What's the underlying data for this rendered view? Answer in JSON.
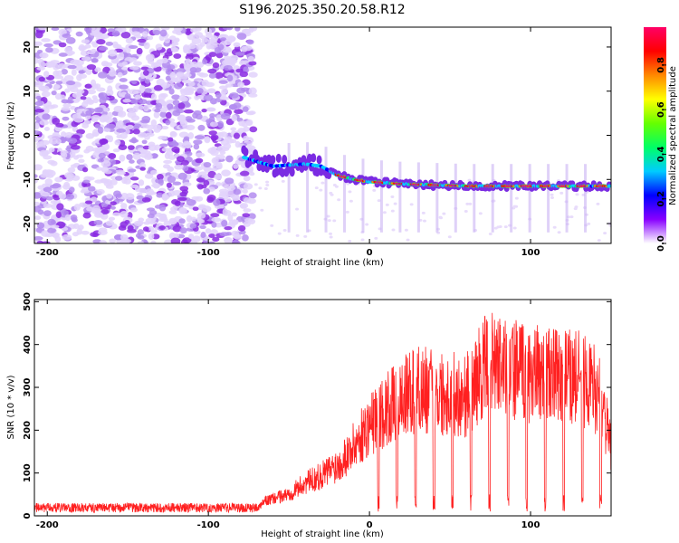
{
  "title": "S196.2025.350.20.58.R12",
  "chart_data": [
    {
      "type": "heatmap",
      "title": "S196.2025.350.20.58.R12",
      "xlabel": "Height of straight line (km)",
      "ylabel": "Frequency (Hz)",
      "xlim": [
        -208,
        150
      ],
      "ylim": [
        -24.5,
        24.5
      ],
      "xticks": [
        -200,
        -100,
        0,
        100
      ],
      "yticks": [
        -20,
        -10,
        0,
        10,
        20
      ],
      "ridge": {
        "description_points": [
          [
            -78,
            -5
          ],
          [
            -60,
            -7
          ],
          [
            -40,
            -6.5
          ],
          [
            -30,
            -7
          ],
          [
            -20,
            -9
          ],
          [
            -10,
            -10
          ],
          [
            0,
            -10.5
          ],
          [
            20,
            -11
          ],
          [
            60,
            -11.5
          ],
          [
            100,
            -11.5
          ],
          [
            150,
            -11.5
          ]
        ]
      },
      "colorbar": {
        "label": "Normalized spectral amplitude",
        "ticks": [
          0.0,
          0.2,
          0.4,
          0.6,
          0.8
        ],
        "range": [
          0,
          0.97
        ],
        "colors": [
          "#ffffff",
          "#8800ff",
          "#0000ff",
          "#00ccff",
          "#00ff66",
          "#66ff00",
          "#ffff00",
          "#ff8800",
          "#ff0000",
          "#ff0066"
        ]
      }
    },
    {
      "type": "line",
      "xlabel": "Height of straight line (km)",
      "ylabel": "SNR (10 * v/v)",
      "xlim": [
        -208,
        150
      ],
      "ylim": [
        0,
        505
      ],
      "xticks": [
        -200,
        -100,
        0,
        100
      ],
      "yticks": [
        0,
        100,
        200,
        300,
        400,
        500
      ],
      "color": "#ff2020",
      "series": [
        {
          "name": "SNR",
          "x": [
            -208,
            -180,
            -150,
            -120,
            -90,
            -70,
            -65,
            -50,
            -40,
            -30,
            -20,
            -10,
            0,
            10,
            20,
            30,
            40,
            60,
            70,
            75,
            80,
            100,
            120,
            130,
            140,
            145,
            150
          ],
          "values": [
            15,
            16,
            15,
            15,
            16,
            17,
            40,
            60,
            90,
            110,
            140,
            190,
            250,
            290,
            320,
            350,
            340,
            330,
            400,
            420,
            410,
            390,
            380,
            380,
            350,
            300,
            180
          ]
        }
      ]
    }
  ]
}
